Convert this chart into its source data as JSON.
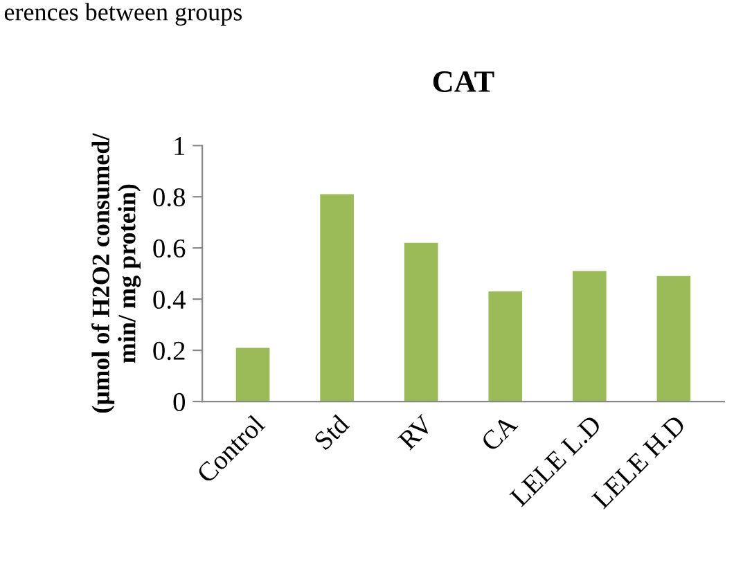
{
  "chart_data": {
    "type": "bar",
    "title": "CAT",
    "ylabel": "(µmol of H2O2 consumed/\nmin/ mg protein)",
    "categories": [
      "Control",
      "Std",
      "RV",
      "CA",
      "LELE L.D",
      "LELE H.D"
    ],
    "values": [
      0.21,
      0.81,
      0.62,
      0.43,
      0.51,
      0.49
    ],
    "color": "#9bbb59",
    "ylim": [
      0,
      1
    ],
    "yticks": [
      0,
      0.2,
      0.4,
      0.6,
      0.8,
      1
    ],
    "grid": false,
    "legend": false,
    "annotations": [
      "erences between groups"
    ]
  }
}
